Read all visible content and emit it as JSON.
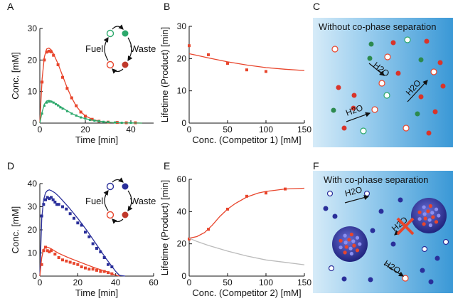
{
  "panel_letters": [
    "A",
    "B",
    "C",
    "D",
    "E",
    "F"
  ],
  "colors": {
    "red": "#e8452c",
    "green": "#2ca86b",
    "blue": "#2a2f9a",
    "gray": "#bbbbbb",
    "bg_light": "#d9ecf8",
    "bg_dark": "#3b9ad6"
  },
  "schemes": {
    "A": {
      "fuel": "Fuel",
      "waste": "Waste",
      "species_color": "#2ca86b"
    },
    "D": {
      "fuel": "Fuel",
      "waste": "Waste",
      "species_color": "#2a2f9a"
    }
  },
  "illustrations": {
    "C": {
      "title": "Without co-phase separation",
      "labels": [
        "H2O",
        "H2O",
        "H2O",
        "H2O"
      ]
    },
    "F": {
      "title": "With co-phase separation",
      "labels": [
        "H2O",
        "H2O",
        "H2O"
      ]
    }
  },
  "chart_data": [
    {
      "panel": "A",
      "type": "scatter",
      "xlabel": "Time [min]",
      "ylabel": "Conc. [mM]",
      "xlim": [
        0,
        50
      ],
      "ylim": [
        0,
        30
      ],
      "xticks": [
        0,
        20,
        40
      ],
      "yticks": [
        0,
        10,
        20,
        30
      ],
      "series": [
        {
          "color": "#e8452c",
          "kind": "points",
          "x": [
            1,
            2,
            3,
            4,
            5,
            6,
            8,
            10,
            12,
            14,
            16,
            18,
            20,
            23,
            26,
            30,
            34,
            38,
            42
          ],
          "y": [
            13,
            20,
            22.5,
            22.8,
            22.6,
            21.5,
            18.5,
            14.5,
            11,
            8,
            5.5,
            3.5,
            2.2,
            1.2,
            0.6,
            0.3,
            0.2,
            0.1,
            0.1
          ]
        },
        {
          "color": "#e8452c",
          "kind": "line",
          "x": [
            0,
            1,
            2,
            3,
            4,
            5,
            6,
            8,
            10,
            12,
            14,
            16,
            18,
            20,
            23,
            26,
            30,
            35,
            40,
            45
          ],
          "y": [
            0,
            14,
            21,
            23.5,
            23.8,
            23.2,
            22,
            18.8,
            15,
            11.2,
            8,
            5.4,
            3.6,
            2.3,
            1.2,
            0.6,
            0.2,
            0.1,
            0.05,
            0
          ]
        },
        {
          "color": "#2ca86b",
          "kind": "points",
          "x": [
            1,
            2,
            3,
            4,
            5,
            6,
            7,
            8,
            9,
            10,
            12,
            14,
            16,
            18,
            20,
            22,
            24,
            26,
            28,
            30,
            33,
            36,
            40
          ],
          "y": [
            3,
            5.5,
            6.5,
            6.8,
            6.8,
            6.5,
            6,
            5.6,
            5,
            4.6,
            3.8,
            3,
            2.4,
            1.8,
            1.4,
            1,
            0.8,
            0.6,
            0.4,
            0.3,
            0.2,
            0.1,
            0.1
          ]
        },
        {
          "color": "#2ca86b",
          "kind": "line",
          "x": [
            0,
            1,
            2,
            3,
            4,
            5,
            6,
            8,
            10,
            12,
            14,
            16,
            18,
            20,
            24,
            28,
            32,
            36,
            40,
            45
          ],
          "y": [
            0,
            3.5,
            6,
            7,
            7.2,
            7,
            6.6,
            5.7,
            4.8,
            3.9,
            3.1,
            2.4,
            1.8,
            1.4,
            0.8,
            0.4,
            0.2,
            0.1,
            0.05,
            0
          ]
        }
      ]
    },
    {
      "panel": "B",
      "type": "scatter",
      "xlabel": "Conc. (Competitor 1) [mM]",
      "ylabel": "Lifetime (Product) [min]",
      "xlim": [
        0,
        150
      ],
      "ylim": [
        0,
        30
      ],
      "xticks": [
        0,
        50,
        100,
        150
      ],
      "yticks": [
        0,
        10,
        20,
        30
      ],
      "series": [
        {
          "color": "#e8452c",
          "kind": "points",
          "x": [
            0,
            25,
            50,
            75,
            100
          ],
          "y": [
            24,
            21.2,
            18.5,
            16.5,
            16
          ]
        },
        {
          "color": "#e8452c",
          "kind": "line",
          "x": [
            0,
            10,
            25,
            50,
            75,
            100,
            125,
            150
          ],
          "y": [
            21.5,
            21,
            20.2,
            19,
            18,
            17.2,
            16.7,
            16.3
          ]
        }
      ]
    },
    {
      "panel": "D",
      "type": "scatter",
      "xlabel": "Time [min]",
      "ylabel": "Conc. [mM]",
      "xlim": [
        0,
        60
      ],
      "ylim": [
        0,
        40
      ],
      "xticks": [
        0,
        20,
        40,
        60
      ],
      "yticks": [
        0,
        10,
        20,
        30,
        40
      ],
      "series": [
        {
          "color": "#2a2f9a",
          "kind": "points",
          "x": [
            1,
            2,
            3,
            4,
            5,
            6,
            7,
            8,
            9,
            10,
            12,
            14,
            16,
            18,
            20,
            22,
            24,
            26,
            28,
            30,
            32,
            34,
            36,
            38
          ],
          "y": [
            26,
            31,
            33,
            34,
            33.5,
            34,
            33,
            32,
            31,
            31,
            30,
            29,
            27,
            25,
            23,
            22,
            19,
            17,
            14,
            12,
            10.5,
            8,
            5,
            4
          ]
        },
        {
          "color": "#2a2f9a",
          "kind": "line",
          "x": [
            0,
            1,
            2,
            3,
            4,
            5,
            6,
            8,
            10,
            15,
            20,
            25,
            30,
            35,
            40,
            42,
            45
          ],
          "y": [
            0,
            25,
            33,
            36,
            37,
            37.3,
            37,
            36,
            34.5,
            30,
            25,
            19.5,
            13.5,
            7.5,
            2,
            0.3,
            0
          ]
        },
        {
          "color": "#e8452c",
          "kind": "points",
          "x": [
            1,
            2,
            3,
            4,
            5,
            6,
            8,
            10,
            12,
            14,
            16,
            18,
            20,
            22,
            24,
            26,
            28,
            30,
            32,
            34,
            36,
            38
          ],
          "y": [
            5,
            11,
            12.5,
            11,
            10.5,
            11,
            9.5,
            8,
            7,
            6.5,
            6,
            5.5,
            5,
            4,
            3.5,
            3,
            3,
            2.5,
            2,
            2,
            1.5,
            1
          ]
        },
        {
          "color": "#e8452c",
          "kind": "line",
          "x": [
            0,
            1,
            2,
            3,
            4,
            5,
            6,
            8,
            10,
            15,
            20,
            25,
            30,
            35,
            38,
            40,
            42
          ],
          "y": [
            0,
            8,
            11.5,
            12.5,
            12.5,
            12.2,
            11.8,
            10.8,
            9.8,
            8,
            6.4,
            4.8,
            3.3,
            2,
            1,
            0.4,
            0
          ]
        }
      ]
    },
    {
      "panel": "E",
      "type": "scatter",
      "xlabel": "Conc. (Competitor 2) [mM]",
      "ylabel": "Lifetime (Product) [min]",
      "xlim": [
        0,
        150
      ],
      "ylim": [
        0,
        60
      ],
      "xticks": [
        0,
        50,
        100,
        150
      ],
      "yticks": [
        0,
        20,
        40,
        60
      ],
      "series": [
        {
          "color": "#e8452c",
          "kind": "points",
          "x": [
            0,
            25,
            50,
            75,
            100,
            125
          ],
          "y": [
            23,
            29,
            41.5,
            49.5,
            51.5,
            54
          ]
        },
        {
          "color": "#e8452c",
          "kind": "line",
          "x": [
            0,
            10,
            20,
            30,
            40,
            50,
            60,
            75,
            90,
            100,
            125,
            150
          ],
          "y": [
            23.5,
            24.5,
            27,
            31.5,
            37,
            41.5,
            45,
            49,
            51.5,
            52.5,
            54,
            54.5
          ]
        },
        {
          "color": "#bbbbbb",
          "kind": "line",
          "x": [
            0,
            10,
            25,
            50,
            75,
            100,
            125,
            150
          ],
          "y": [
            23.5,
            21.5,
            19,
            15.5,
            12.5,
            10,
            8.5,
            7
          ]
        }
      ]
    }
  ]
}
